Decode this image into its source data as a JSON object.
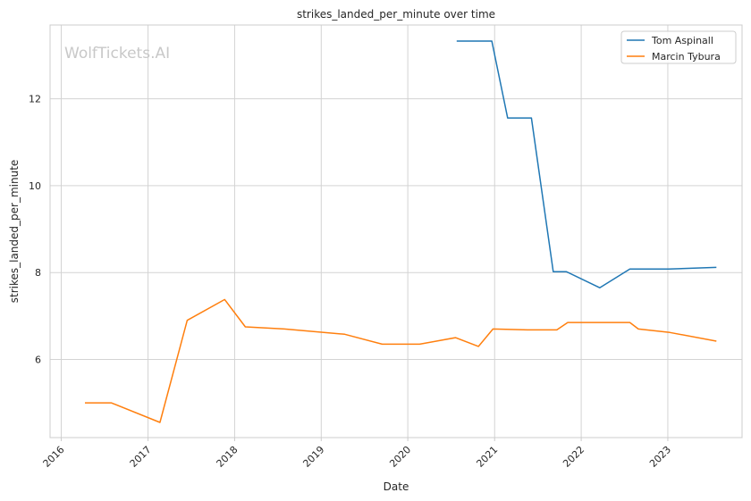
{
  "chart_data": {
    "type": "line",
    "title": "strikes_landed_per_minute over time",
    "xlabel": "Date",
    "ylabel": "strikes_landed_per_minute",
    "watermark": "WolfTickets.AI",
    "xlim": [
      "2015-11-15",
      "2023-11-10"
    ],
    "ylim": [
      4.2,
      13.7
    ],
    "x_ticks": [
      "2016",
      "2017",
      "2018",
      "2019",
      "2020",
      "2021",
      "2022",
      "2023"
    ],
    "y_ticks": [
      6,
      8,
      10,
      12
    ],
    "grid": true,
    "legend_position": "top-right",
    "series": [
      {
        "name": "Tom Aspinall",
        "color": "#1f77b4",
        "points": [
          [
            "2020-07-25",
            13.33
          ],
          [
            "2020-12-20",
            13.33
          ],
          [
            "2021-02-25",
            11.56
          ],
          [
            "2021-06-05",
            11.56
          ],
          [
            "2021-09-05",
            8.02
          ],
          [
            "2021-10-30",
            8.02
          ],
          [
            "2022-03-20",
            7.65
          ],
          [
            "2022-07-25",
            8.08
          ],
          [
            "2023-01-05",
            8.08
          ],
          [
            "2023-07-25",
            8.12
          ]
        ]
      },
      {
        "name": "Marcin Tybura",
        "color": "#ff7f0e",
        "points": [
          [
            "2016-04-10",
            5.0
          ],
          [
            "2016-07-30",
            5.0
          ],
          [
            "2017-02-20",
            4.55
          ],
          [
            "2017-06-15",
            6.9
          ],
          [
            "2017-11-20",
            7.38
          ],
          [
            "2018-02-15",
            6.75
          ],
          [
            "2018-07-30",
            6.7
          ],
          [
            "2019-04-10",
            6.58
          ],
          [
            "2019-09-15",
            6.35
          ],
          [
            "2020-02-20",
            6.35
          ],
          [
            "2020-07-20",
            6.5
          ],
          [
            "2020-10-25",
            6.3
          ],
          [
            "2020-12-25",
            6.7
          ],
          [
            "2021-05-20",
            6.68
          ],
          [
            "2021-09-20",
            6.68
          ],
          [
            "2021-11-05",
            6.85
          ],
          [
            "2022-07-25",
            6.85
          ],
          [
            "2022-08-30",
            6.7
          ],
          [
            "2023-01-10",
            6.62
          ],
          [
            "2023-07-25",
            6.42
          ]
        ]
      }
    ]
  }
}
